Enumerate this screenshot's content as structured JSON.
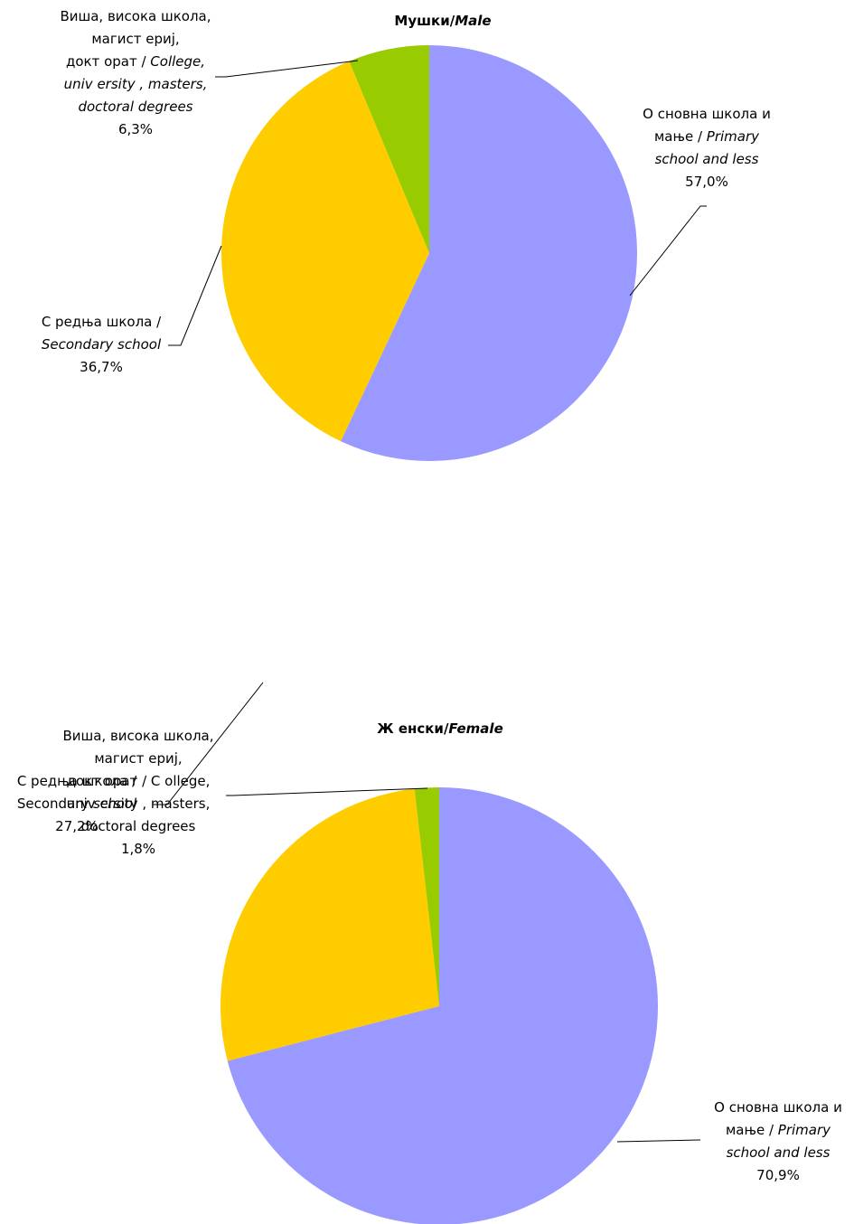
{
  "chart_data": [
    {
      "type": "pie",
      "title": "Мушки/",
      "title_italic": "Male",
      "slices": [
        {
          "value": 57.0,
          "value_label": "57,0%",
          "color": "#9999ff",
          "label_lines": [
            [
              {
                "t": "О сновна школа и",
                "i": false
              }
            ],
            [
              {
                "t": "мање / ",
                "i": false
              },
              {
                "t": "Primary",
                "i": true
              }
            ],
            [
              {
                "t": "school and less",
                "i": true
              }
            ]
          ]
        },
        {
          "value": 36.7,
          "value_label": "36,7%",
          "color": "#ffcc00",
          "label_lines": [
            [
              {
                "t": "С редња школа /",
                "i": false
              }
            ],
            [
              {
                "t": "Secondary school",
                "i": true
              }
            ]
          ]
        },
        {
          "value": 6.3,
          "value_label": "6,3%",
          "color": "#99cc00",
          "label_lines": [
            [
              {
                "t": "Виша, висока школа,",
                "i": false
              }
            ],
            [
              {
                "t": "магист ериј,",
                "i": false
              }
            ],
            [
              {
                "t": "докт орат / ",
                "i": false
              },
              {
                "t": "College,",
                "i": true
              }
            ],
            [
              {
                "t": "univ ersity , masters,",
                "i": true
              }
            ],
            [
              {
                "t": "doctoral degrees",
                "i": true
              }
            ]
          ]
        }
      ]
    },
    {
      "type": "pie",
      "title": "Ж енски/",
      "title_italic": "Female",
      "slices": [
        {
          "value": 70.9,
          "value_label": "70,9%",
          "color": "#9999ff",
          "label_lines": [
            [
              {
                "t": "О сновна школа и",
                "i": false
              }
            ],
            [
              {
                "t": "мање / ",
                "i": false
              },
              {
                "t": "Primary",
                "i": true
              }
            ],
            [
              {
                "t": "school and less",
                "i": true
              }
            ]
          ]
        },
        {
          "value": 27.2,
          "value_label": "27,2%",
          "color": "#ffcc00",
          "label_lines": [
            [
              {
                "t": "С редња школа /",
                "i": false
              }
            ],
            [
              {
                "t": "Secondary ",
                "i": false
              },
              {
                "t": "school",
                "i": true
              }
            ]
          ]
        },
        {
          "value": 1.8,
          "value_label": "1,8%",
          "color": "#99cc00",
          "label_lines": [
            [
              {
                "t": "Виша, висока школа,",
                "i": false
              }
            ],
            [
              {
                "t": "магист ериј,",
                "i": false
              }
            ],
            [
              {
                "t": "докт орат / С ollege,",
                "i": false
              }
            ],
            [
              {
                "t": "univ ersity , masters,",
                "i": false
              }
            ],
            [
              {
                "t": "doctoral degrees",
                "i": false
              }
            ]
          ]
        }
      ]
    }
  ]
}
